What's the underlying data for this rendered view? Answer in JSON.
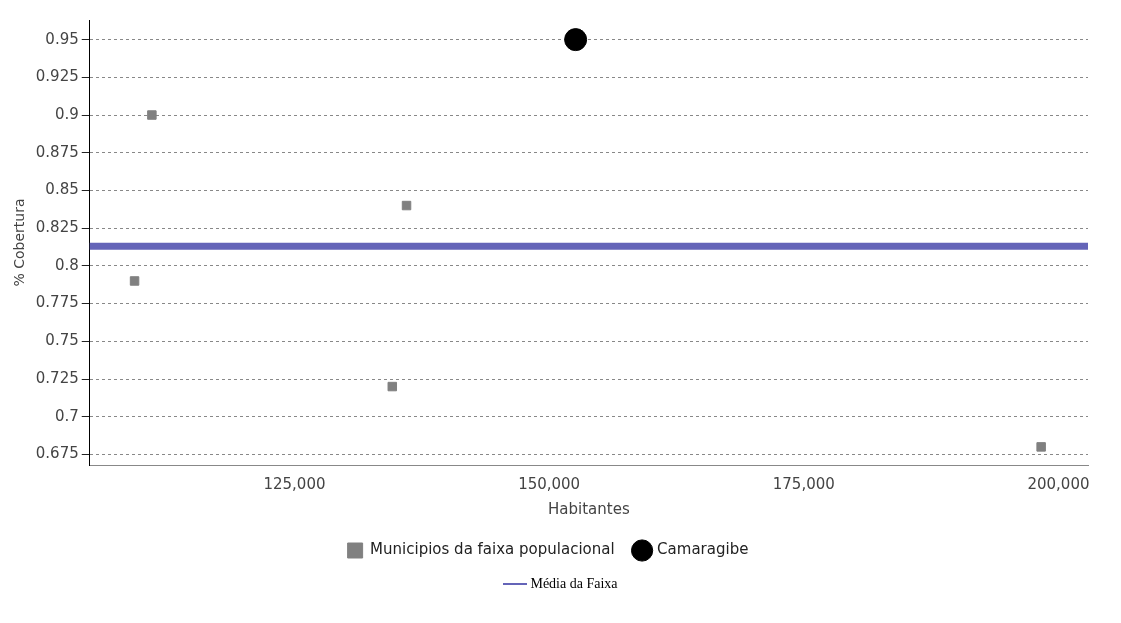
{
  "chart_data": {
    "type": "scatter",
    "xlabel": "Habitantes",
    "ylabel": "% Cobertura",
    "xlim": [
      104900,
      202900
    ],
    "ylim": [
      0.668,
      0.963
    ],
    "xticks": [
      {
        "value": 125000,
        "label": "125,000"
      },
      {
        "value": 150000,
        "label": "150,000"
      },
      {
        "value": 175000,
        "label": "175,000"
      },
      {
        "value": 200000,
        "label": "200,000"
      }
    ],
    "yticks": [
      0.675,
      0.7,
      0.725,
      0.75,
      0.775,
      0.8,
      0.825,
      0.85,
      0.875,
      0.9,
      0.925,
      0.95
    ],
    "grid": "y",
    "legend": "bottom",
    "series": [
      {
        "name": "Municipios da faixa populacional",
        "color": "#808080",
        "marker": "square",
        "x": [
          111000,
          109300,
          136000,
          134600,
          198300
        ],
        "values": [
          0.9,
          0.79,
          0.84,
          0.72,
          0.68
        ]
      },
      {
        "name": "Camaragibe",
        "color": "#000000",
        "marker": "circle",
        "x": [
          152600
        ],
        "values": [
          0.95
        ]
      }
    ],
    "ref_lines": [
      {
        "axis": "y",
        "value": 0.813,
        "label": "Média da Faixa",
        "color": "#6464b8"
      }
    ]
  }
}
